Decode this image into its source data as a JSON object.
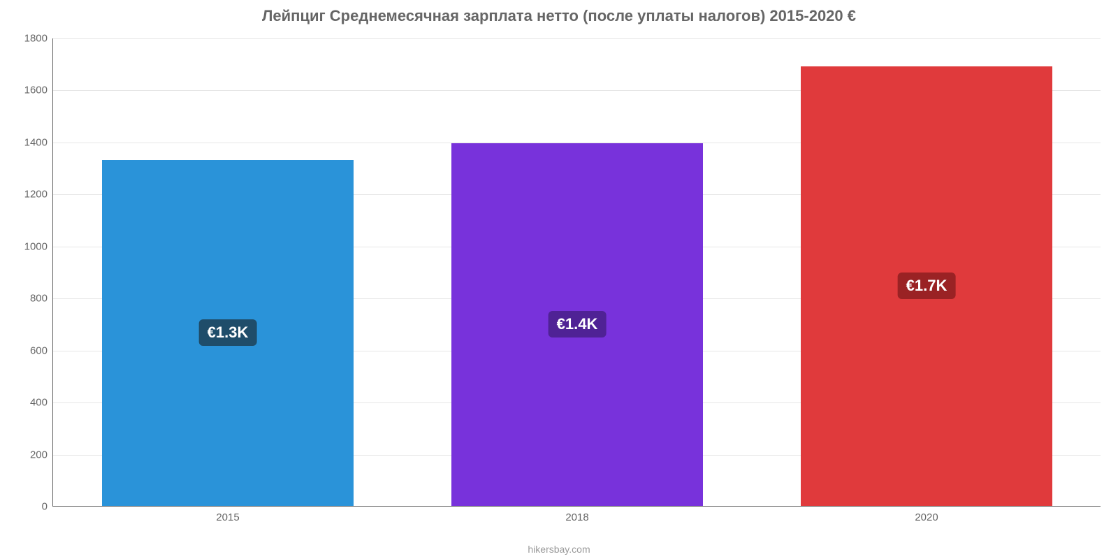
{
  "chart": {
    "type": "bar",
    "title": "Лейпциг Среднемесячная зарплата нетто (после уплаты налогов) 2015-2020 €",
    "title_fontsize": 22,
    "title_color": "#666666",
    "source_label": "hikersbay.com",
    "source_fontsize": 14,
    "source_color": "#999999",
    "background_color": "#ffffff",
    "grid_color": "#e6e6e6",
    "axis_color": "#666666",
    "tick_color": "#666666",
    "tick_fontsize": 15,
    "value_badge_fontsize": 22,
    "ylim": [
      0,
      1800
    ],
    "ytick_step": 200,
    "yticks": [
      0,
      200,
      400,
      600,
      800,
      1000,
      1200,
      1400,
      1600,
      1800
    ],
    "categories": [
      "2015",
      "2018",
      "2020"
    ],
    "values": [
      1330,
      1395,
      1690
    ],
    "value_labels": [
      "€1.3K",
      "€1.4K",
      "€1.7K"
    ],
    "bar_colors": [
      "#2a93d9",
      "#7832db",
      "#e03a3c"
    ],
    "badge_colors": [
      "#1f4d6a",
      "#4f2295",
      "#9a2224"
    ],
    "bar_width_ratio": 0.72
  }
}
